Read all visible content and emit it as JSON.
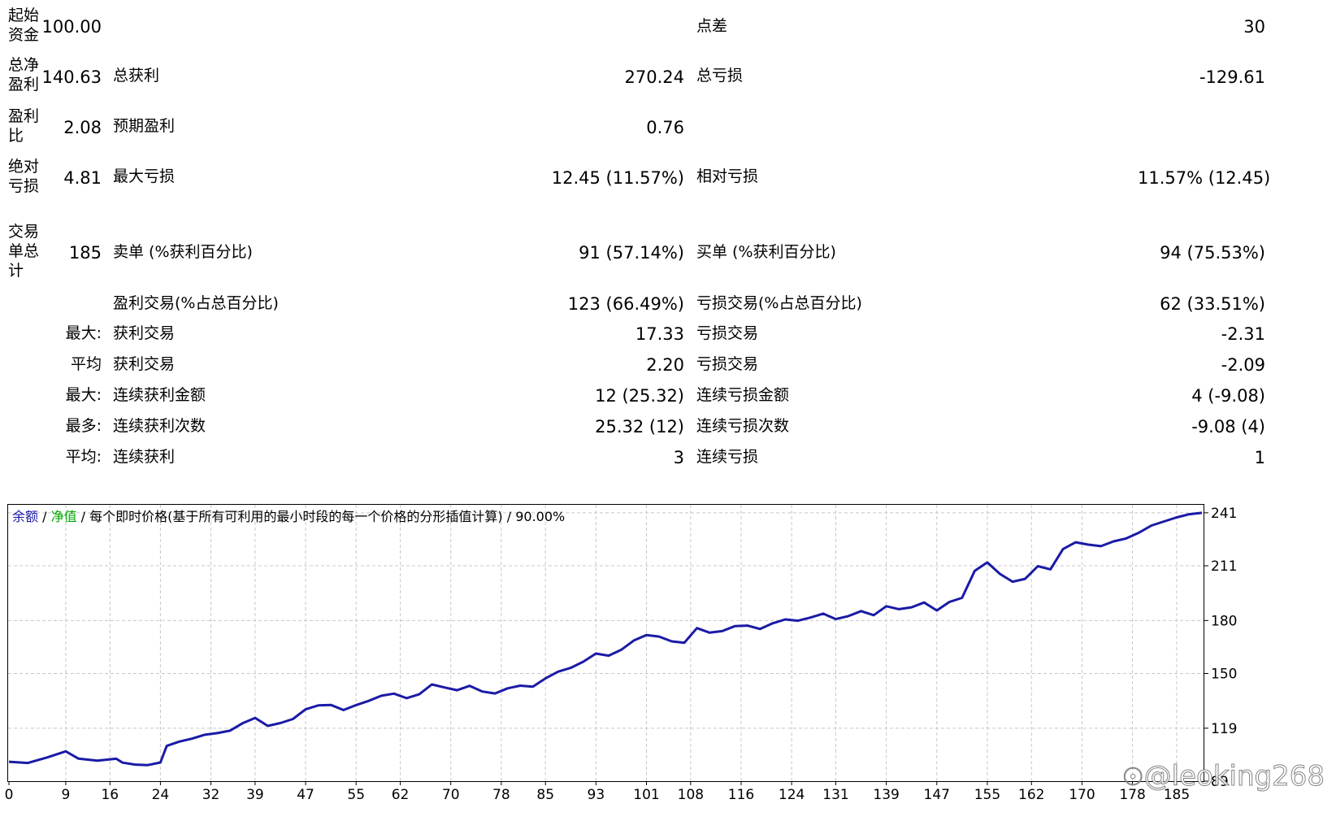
{
  "report": {
    "initial_deposit": {
      "label": "起始\n资金",
      "value": "100.00"
    },
    "spread": {
      "label": "点差",
      "value": "30"
    },
    "total_net_profit": {
      "label": "总净\n盈利",
      "value": "140.63"
    },
    "gross_profit": {
      "label": "总获利",
      "value": "270.24"
    },
    "gross_loss": {
      "label": "总亏损",
      "value": "-129.61"
    },
    "profit_factor": {
      "label": "盈利\n比",
      "value": "2.08"
    },
    "expected_payoff": {
      "label": "预期盈利",
      "value": "0.76"
    },
    "absolute_drawdown": {
      "label": "绝对\n亏损",
      "value": "4.81"
    },
    "maximal_drawdown": {
      "label": "最大亏损",
      "value": "12.45 (11.57%)"
    },
    "relative_drawdown": {
      "label": "相对亏损",
      "value": "11.57% (12.45)"
    },
    "total_trades": {
      "label": "交易\n单总\n计",
      "value": "185"
    },
    "short_positions": {
      "label": "卖单 (%获利百分比)",
      "value": "91 (57.14%)"
    },
    "long_positions": {
      "label": "买单 (%获利百分比)",
      "value": "94 (75.53%)"
    },
    "profit_trades": {
      "label": "盈利交易(%占总百分比)",
      "value": "123 (66.49%)"
    },
    "loss_trades": {
      "label": "亏损交易(%占总百分比)",
      "value": "62 (33.51%)"
    },
    "largest": {
      "prefix": "最大:",
      "profit_label": "获利交易",
      "profit_value": "17.33",
      "loss_label": "亏损交易",
      "loss_value": "-2.31"
    },
    "average": {
      "prefix": "平均",
      "profit_label": "获利交易",
      "profit_value": "2.20",
      "loss_label": "亏损交易",
      "loss_value": "-2.09"
    },
    "max_consecutive_amount": {
      "prefix": "最大:",
      "profit_label": "连续获利金额",
      "profit_value": "12 (25.32)",
      "loss_label": "连续亏损金额",
      "loss_value": "4 (-9.08)"
    },
    "max_consecutive_count": {
      "prefix": "最多:",
      "profit_label": "连续获利次数",
      "profit_value": "25.32 (12)",
      "loss_label": "连续亏损次数",
      "loss_value": "-9.08 (4)"
    },
    "avg_consecutive": {
      "prefix": "平均:",
      "profit_label": "连续获利",
      "profit_value": "3",
      "loss_label": "连续亏损",
      "loss_value": "1"
    }
  },
  "chart_header": {
    "balance": "余额",
    "sep1": " / ",
    "equity": "净值",
    "sep2": " / ",
    "model": "每个即时价格(基于所有可利用的最小时段的每一个价格的分形插值计算)",
    "sep3": " / ",
    "quality": "90.00%"
  },
  "watermark": "@leoking268",
  "colors": {
    "balance": "#1a1aa6",
    "equity": "#00aa00",
    "grid": "#c8c8c8"
  },
  "chart_data": {
    "type": "line",
    "xlabel": "",
    "ylabel": "",
    "xlim": [
      0,
      189
    ],
    "ylim": [
      89,
      246
    ],
    "x_ticks": [
      0,
      9,
      16,
      24,
      32,
      39,
      47,
      55,
      62,
      70,
      78,
      85,
      93,
      101,
      108,
      116,
      124,
      131,
      139,
      147,
      155,
      162,
      170,
      178,
      185
    ],
    "y_ticks": [
      89,
      119,
      150,
      180,
      211,
      241
    ],
    "grid": true,
    "series": [
      {
        "name": "余额",
        "x": [
          0,
          3,
          6,
          9,
          11,
          14,
          17,
          18,
          20,
          22,
          24,
          25,
          27,
          29,
          31,
          33,
          35,
          37,
          39,
          41,
          43,
          45,
          47,
          49,
          51,
          53,
          55,
          57,
          59,
          61,
          63,
          65,
          67,
          69,
          71,
          73,
          75,
          77,
          79,
          81,
          83,
          85,
          87,
          89,
          91,
          93,
          95,
          97,
          99,
          101,
          103,
          105,
          107,
          109,
          111,
          113,
          115,
          117,
          119,
          121,
          123,
          125,
          127,
          129,
          131,
          133,
          135,
          137,
          139,
          141,
          143,
          145,
          147,
          149,
          151,
          153,
          155,
          157,
          159,
          161,
          163,
          165,
          167,
          169,
          171,
          173,
          175,
          177,
          179,
          181,
          183,
          185,
          187,
          189
        ],
        "y": [
          100.0,
          99.3,
          102.4,
          105.9,
          101.8,
          100.6,
          101.7,
          99.5,
          98.4,
          98.1,
          99.6,
          109.0,
          111.4,
          113.1,
          115.3,
          116.2,
          117.6,
          121.8,
          124.8,
          120.3,
          121.9,
          124.2,
          129.7,
          131.9,
          132.2,
          129.3,
          132.1,
          134.5,
          137.4,
          138.6,
          136.0,
          138.2,
          143.8,
          142.1,
          140.5,
          143.0,
          139.8,
          138.7,
          141.6,
          143.1,
          142.5,
          147.2,
          151.0,
          153.2,
          156.7,
          161.3,
          160.1,
          163.4,
          168.7,
          171.8,
          170.9,
          168.2,
          167.4,
          175.7,
          173.1,
          174.0,
          176.8,
          177.1,
          175.2,
          178.4,
          180.6,
          179.9,
          181.7,
          183.9,
          180.8,
          182.5,
          185.3,
          183.0,
          188.1,
          186.4,
          187.5,
          190.2,
          185.7,
          190.5,
          192.8,
          208.1,
          212.9,
          206.4,
          202.0,
          203.6,
          210.8,
          209.0,
          220.5,
          224.3,
          223.0,
          222.1,
          224.8,
          226.5,
          229.7,
          233.8,
          236.1,
          238.4,
          240.2,
          241.0
        ]
      }
    ]
  }
}
